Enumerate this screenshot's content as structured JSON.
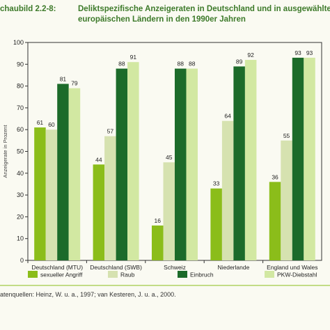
{
  "caption": {
    "label": "chaubild 2.2-8:",
    "title_line1": "Deliktspezifische Anzeigeraten in Deutschland und in ausgewählten",
    "title_line2": "europäischen Ländern in den 1990er Jahren"
  },
  "source_text": "atenquellen:  Heinz, W. u. a., 1997; van Kesteren, J. u. a., 2000.",
  "chart_data": {
    "type": "bar",
    "title": "Deliktspezifische Anzeigeraten in Deutschland und in ausgewählten europäischen Ländern in den 1990er Jahren",
    "ylabel": "Anzeigerate in Prozent",
    "ylim": [
      0,
      100
    ],
    "yticks": [
      0,
      10,
      20,
      30,
      40,
      50,
      60,
      70,
      80,
      90,
      100
    ],
    "grid": false,
    "legend_position": "bottom",
    "categories": [
      "Deutschland (MTU)",
      "Deutschland (SWB)",
      "Schweiz",
      "Niederlande",
      "England und Wales"
    ],
    "series": [
      {
        "name": "sexueller Angriff",
        "color": "#8bbd1a",
        "values": [
          61,
          44,
          16,
          33,
          36
        ]
      },
      {
        "name": "Raub",
        "color": "#d6e2b0",
        "values": [
          60,
          57,
          45,
          64,
          55
        ]
      },
      {
        "name": "Einbruch",
        "color": "#1c6b2a",
        "values": [
          81,
          88,
          88,
          89,
          93
        ]
      },
      {
        "name": "PKW-Diebstahl",
        "color": "#d2e8a2",
        "values": [
          79,
          91,
          88,
          92,
          93
        ]
      }
    ]
  }
}
